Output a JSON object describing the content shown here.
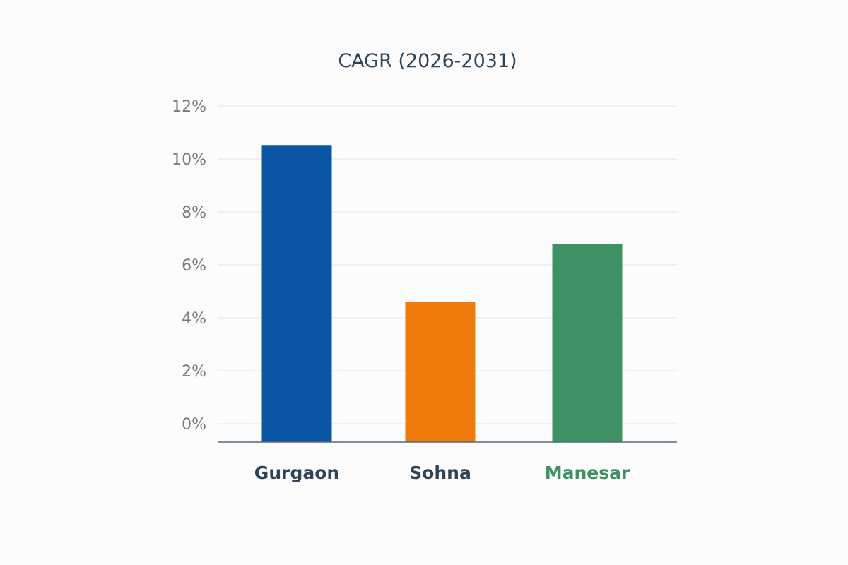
{
  "chart_data": {
    "type": "bar",
    "title": "CAGR (2026-2031)",
    "xlabel": "",
    "ylabel": "",
    "categories": [
      "Gurgaon",
      "Sohna",
      "Manesar"
    ],
    "values": [
      10.5,
      4.6,
      6.8
    ],
    "unit": "%",
    "ylim": [
      0,
      12
    ],
    "yticks": [
      0,
      2,
      4,
      6,
      8,
      10,
      12
    ],
    "ytick_labels": [
      "0%",
      "2%",
      "4%",
      "6%",
      "8%",
      "10%",
      "12%"
    ],
    "grid": true,
    "legend": "none",
    "bar_colors": [
      "#0b56a4",
      "#f07a0c",
      "#3e9164"
    ],
    "category_label_colors": [
      "#2e4457",
      "#2e4457",
      "#3e9164"
    ]
  }
}
